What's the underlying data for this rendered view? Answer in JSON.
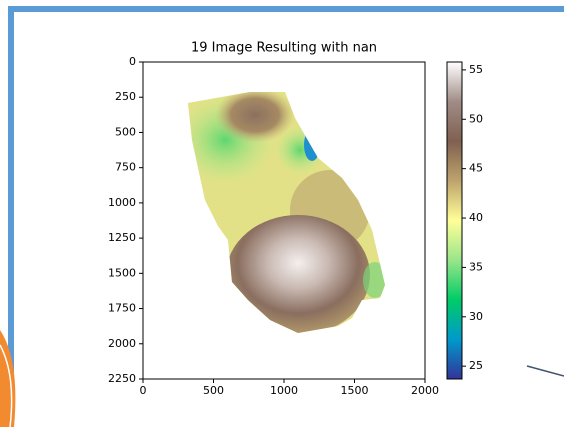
{
  "chart_data": {
    "type": "image",
    "title": "19 Image Resulting with nan",
    "xlim": [
      0,
      2000
    ],
    "xticks": [
      0,
      500,
      1000,
      1500,
      2000
    ],
    "ylim": [
      2250,
      0
    ],
    "yticks": [
      0,
      250,
      500,
      750,
      1000,
      1250,
      1500,
      1750,
      2000,
      2250
    ],
    "colorbar": {
      "clim": [
        23.7,
        55.8
      ],
      "ticks": [
        25,
        30,
        35,
        40,
        45,
        50,
        55
      ],
      "colors": [
        "#333399",
        "#0099cc",
        "#00cc66",
        "#99e68a",
        "#ffff99",
        "#bfa36c",
        "#806050",
        "#a08c86",
        "#ffffff"
      ]
    }
  }
}
